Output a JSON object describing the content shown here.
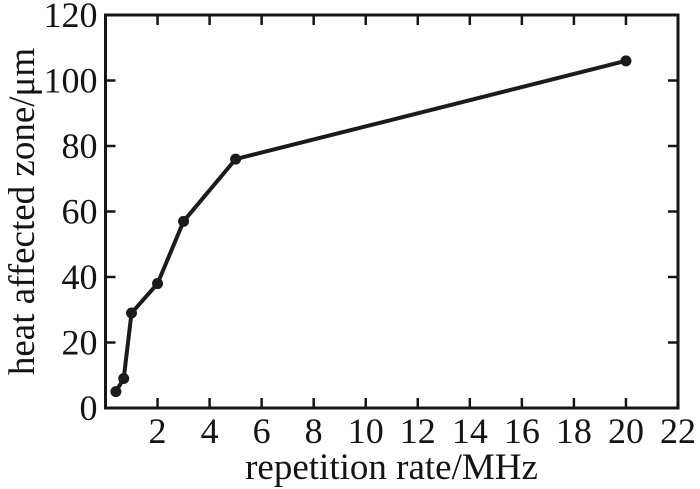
{
  "figure": {
    "background": "#ffffff",
    "axis_color": "#161616",
    "line_color": "#1b1b1b",
    "marker_color": "#1b1b1b",
    "tick_label_color": "#141414"
  },
  "chart_data": {
    "type": "line",
    "title": "",
    "xlabel": "repetition rate/MHz",
    "ylabel": "heat affected zone/μm",
    "x": [
      0.4,
      0.7,
      1,
      2,
      3,
      5,
      20
    ],
    "y": [
      5,
      9,
      29,
      38,
      57,
      76,
      106
    ],
    "series_name": "heat affected zone",
    "xlim": [
      0,
      22
    ],
    "ylim": [
      0,
      120
    ],
    "x_ticks": [
      2,
      4,
      6,
      8,
      10,
      12,
      14,
      16,
      18,
      20,
      22
    ],
    "y_ticks": [
      0,
      20,
      40,
      60,
      80,
      100,
      120
    ],
    "grid": false,
    "legend": null,
    "marker": "circle",
    "frame": "box",
    "tick_direction": "in"
  }
}
